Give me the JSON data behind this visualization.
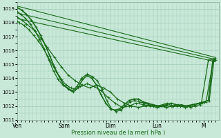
{
  "xlabel": "Pression niveau de la mer( hPa )",
  "ylim": [
    1011,
    1019.5
  ],
  "yticks": [
    1011,
    1012,
    1013,
    1014,
    1015,
    1016,
    1017,
    1018,
    1019
  ],
  "xlim": [
    0,
    4.33
  ],
  "xtick_positions": [
    0.0,
    1.0,
    2.0,
    3.0,
    4.0
  ],
  "xtick_labels": [
    "Ven",
    "Sam",
    "Dim",
    "Lun",
    "M"
  ],
  "background_color": "#c8e8d8",
  "grid_color": "#a0ccb8",
  "line_color": "#1a6b1a",
  "series": [
    {
      "x": [
        0.0,
        4.25
      ],
      "y": [
        1019.2,
        1015.5
      ],
      "lw": 0.8,
      "marker": null
    },
    {
      "x": [
        0.0,
        4.25
      ],
      "y": [
        1018.7,
        1015.35
      ],
      "lw": 0.8,
      "marker": null
    },
    {
      "x": [
        0.0,
        4.25
      ],
      "y": [
        1018.3,
        1015.2
      ],
      "lw": 0.8,
      "marker": null
    },
    {
      "x": [
        0.0,
        0.05,
        0.15,
        0.25,
        0.35,
        0.45,
        0.55,
        0.65,
        0.75,
        0.85,
        0.95,
        1.05,
        1.15,
        1.25,
        1.35,
        1.5,
        1.65,
        1.8,
        1.95,
        2.1,
        2.25,
        2.4,
        2.55,
        2.7,
        2.85,
        3.0,
        3.15,
        3.3,
        3.45,
        3.6,
        3.75,
        3.9,
        4.05,
        4.2,
        4.25
      ],
      "y": [
        1018.1,
        1018.0,
        1017.8,
        1017.5,
        1017.1,
        1016.7,
        1016.2,
        1015.6,
        1015.0,
        1014.4,
        1013.9,
        1013.5,
        1013.3,
        1013.2,
        1013.4,
        1013.6,
        1013.4,
        1013.1,
        1012.6,
        1012.2,
        1011.9,
        1012.0,
        1012.2,
        1012.1,
        1012.0,
        1011.9,
        1012.0,
        1012.0,
        1012.1,
        1012.0,
        1012.1,
        1012.2,
        1012.3,
        1015.2,
        1015.3
      ],
      "lw": 0.9,
      "marker": "+"
    },
    {
      "x": [
        0.0,
        0.1,
        0.2,
        0.35,
        0.5,
        0.65,
        0.8,
        0.95,
        1.1,
        1.25,
        1.4,
        1.55,
        1.7,
        1.85,
        2.0,
        2.15,
        2.3,
        2.45,
        2.6,
        2.75,
        2.9,
        3.05,
        3.2,
        3.35,
        3.5,
        3.65,
        3.8,
        3.95,
        4.1,
        4.25
      ],
      "y": [
        1018.4,
        1018.2,
        1017.9,
        1017.5,
        1016.9,
        1016.2,
        1015.5,
        1014.8,
        1014.2,
        1013.8,
        1013.5,
        1013.3,
        1013.5,
        1013.3,
        1013.0,
        1012.5,
        1012.2,
        1012.0,
        1011.9,
        1012.0,
        1012.1,
        1012.0,
        1011.9,
        1012.0,
        1012.0,
        1012.0,
        1012.1,
        1012.2,
        1015.3,
        1015.4
      ],
      "lw": 0.9,
      "marker": "+"
    },
    {
      "x": [
        0.0,
        0.08,
        0.18,
        0.28,
        0.38,
        0.48,
        0.58,
        0.68,
        0.78,
        0.88,
        0.98,
        1.08,
        1.18,
        1.28,
        1.38,
        1.5,
        1.62,
        1.72,
        1.82,
        1.92,
        2.02,
        2.12,
        2.22,
        2.32,
        2.42,
        2.52,
        2.62,
        2.72,
        2.82,
        2.92,
        3.02,
        3.12,
        3.22,
        3.32,
        3.42,
        3.52,
        3.62,
        3.72,
        3.82,
        3.92,
        4.02,
        4.12,
        4.22,
        4.25
      ],
      "y": [
        1018.8,
        1018.6,
        1018.3,
        1017.9,
        1017.4,
        1016.8,
        1016.1,
        1015.3,
        1014.5,
        1013.9,
        1013.5,
        1013.3,
        1013.1,
        1013.4,
        1014.0,
        1014.3,
        1014.1,
        1013.8,
        1013.2,
        1012.4,
        1011.8,
        1011.6,
        1011.7,
        1012.0,
        1012.3,
        1012.4,
        1012.3,
        1012.2,
        1012.1,
        1012.0,
        1012.0,
        1012.1,
        1012.2,
        1012.0,
        1012.0,
        1012.1,
        1012.0,
        1011.9,
        1012.0,
        1012.1,
        1012.3,
        1012.4,
        1015.3,
        1015.4
      ],
      "lw": 0.9,
      "marker": "+"
    },
    {
      "x": [
        0.0,
        0.1,
        0.2,
        0.3,
        0.4,
        0.5,
        0.6,
        0.7,
        0.8,
        0.9,
        1.0,
        1.1,
        1.2,
        1.3,
        1.4,
        1.5,
        1.6,
        1.7,
        1.8,
        1.9,
        2.0,
        2.1,
        2.2,
        2.3,
        2.4,
        2.5,
        2.6,
        2.7,
        2.8,
        2.9,
        3.0,
        3.1,
        3.2,
        3.3,
        3.4,
        3.5,
        3.6,
        3.7,
        3.8,
        3.9,
        4.0,
        4.1,
        4.2,
        4.25
      ],
      "y": [
        1019.1,
        1018.9,
        1018.6,
        1018.2,
        1017.7,
        1017.1,
        1016.4,
        1015.6,
        1014.8,
        1014.1,
        1013.5,
        1013.2,
        1013.0,
        1013.3,
        1013.9,
        1014.2,
        1014.0,
        1013.5,
        1012.8,
        1012.2,
        1011.8,
        1011.7,
        1011.8,
        1012.1,
        1012.4,
        1012.5,
        1012.5,
        1012.3,
        1012.2,
        1012.1,
        1012.0,
        1012.0,
        1012.1,
        1012.2,
        1012.1,
        1012.0,
        1011.9,
        1012.0,
        1012.1,
        1012.2,
        1012.3,
        1012.4,
        1015.4,
        1015.4
      ],
      "lw": 1.2,
      "marker": "+"
    }
  ]
}
